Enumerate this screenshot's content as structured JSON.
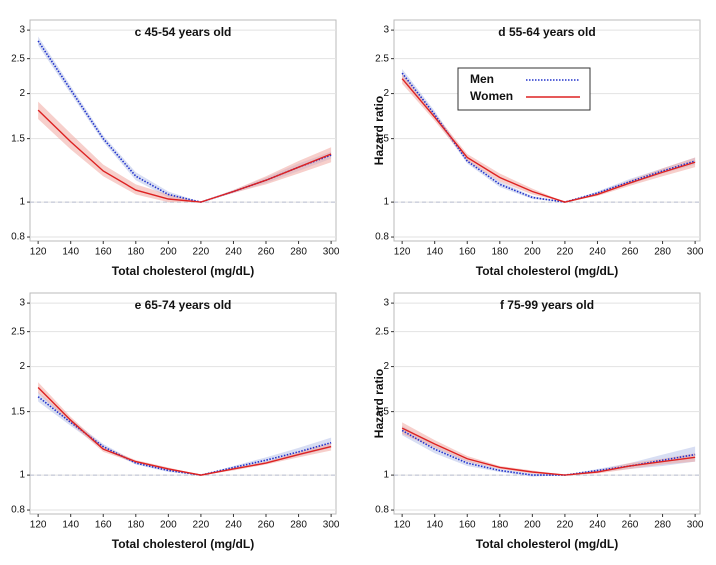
{
  "chart_data": [
    {
      "type": "line",
      "title": "c 45-54 years old",
      "x_label": "Total cholesterol (mg/dL)",
      "x": [
        120,
        140,
        160,
        180,
        200,
        220,
        240,
        260,
        280,
        300
      ],
      "series": [
        {
          "color": "#2233cc",
          "style": "dotted",
          "band_color": "#b8c2ea",
          "values": [
            2.8,
            2.05,
            1.5,
            1.18,
            1.05,
            1.0,
            1.07,
            1.15,
            1.25,
            1.35
          ],
          "lower": [
            2.72,
            2.0,
            1.47,
            1.15,
            1.03,
            1.0,
            1.06,
            1.13,
            1.22,
            1.32
          ],
          "upper": [
            2.88,
            2.1,
            1.53,
            1.21,
            1.07,
            1.0,
            1.08,
            1.17,
            1.28,
            1.38
          ]
        },
        {
          "color": "#dd2222",
          "style": "solid",
          "band_color": "#f0a8a0",
          "values": [
            1.8,
            1.47,
            1.22,
            1.08,
            1.02,
            1.0,
            1.07,
            1.15,
            1.25,
            1.36
          ],
          "lower": [
            1.7,
            1.4,
            1.18,
            1.05,
            1.0,
            1.0,
            1.06,
            1.12,
            1.2,
            1.29
          ],
          "upper": [
            1.9,
            1.55,
            1.27,
            1.12,
            1.05,
            1.0,
            1.08,
            1.18,
            1.3,
            1.42
          ]
        }
      ],
      "xlim": [
        115,
        303
      ],
      "ylim": [
        0.78,
        3.2
      ],
      "log_scale": "y",
      "xticks": [
        120,
        140,
        160,
        180,
        200,
        220,
        240,
        260,
        280,
        300
      ],
      "yticks": [
        0.8,
        1,
        1.5,
        2,
        2.5,
        3
      ],
      "grid": true,
      "hline": 1
    },
    {
      "type": "line",
      "title": "d 55-64 years old",
      "x_label": "Total cholesterol (mg/dL)",
      "y_label": "Hazard ratio",
      "x": [
        120,
        140,
        160,
        180,
        200,
        220,
        240,
        260,
        280,
        300
      ],
      "series": [
        {
          "name": "Men",
          "color": "#2233cc",
          "style": "dotted",
          "band_color": "#b8c2ea",
          "values": [
            2.28,
            1.75,
            1.3,
            1.12,
            1.03,
            1.0,
            1.06,
            1.14,
            1.22,
            1.3
          ],
          "lower": [
            2.22,
            1.71,
            1.28,
            1.1,
            1.02,
            1.0,
            1.05,
            1.12,
            1.2,
            1.27
          ],
          "upper": [
            2.34,
            1.79,
            1.32,
            1.14,
            1.04,
            1.0,
            1.07,
            1.16,
            1.24,
            1.33
          ]
        },
        {
          "name": "Women",
          "color": "#dd2222",
          "style": "solid",
          "band_color": "#f0a8a0",
          "values": [
            2.2,
            1.72,
            1.33,
            1.17,
            1.07,
            1.0,
            1.05,
            1.13,
            1.21,
            1.29
          ],
          "lower": [
            2.13,
            1.68,
            1.3,
            1.14,
            1.05,
            1.0,
            1.04,
            1.11,
            1.18,
            1.25
          ],
          "upper": [
            2.27,
            1.76,
            1.36,
            1.2,
            1.09,
            1.0,
            1.06,
            1.15,
            1.24,
            1.33
          ]
        }
      ],
      "xlim": [
        115,
        303
      ],
      "ylim": [
        0.78,
        3.2
      ],
      "log_scale": "y",
      "xticks": [
        120,
        140,
        160,
        180,
        200,
        220,
        240,
        260,
        280,
        300
      ],
      "yticks": [
        0.8,
        1,
        1.5,
        2,
        2.5,
        3
      ],
      "grid": true,
      "hline": 1,
      "legend": "top"
    },
    {
      "type": "line",
      "title": "e 65-74 years old",
      "x_label": "Total cholesterol (mg/dL)",
      "x": [
        120,
        140,
        160,
        180,
        200,
        220,
        240,
        260,
        280,
        300
      ],
      "series": [
        {
          "color": "#2233cc",
          "style": "dotted",
          "band_color": "#b8c2ea",
          "values": [
            1.65,
            1.4,
            1.2,
            1.08,
            1.03,
            1.0,
            1.05,
            1.1,
            1.16,
            1.23
          ],
          "lower": [
            1.6,
            1.37,
            1.18,
            1.07,
            1.02,
            1.0,
            1.04,
            1.08,
            1.13,
            1.19
          ],
          "upper": [
            1.7,
            1.43,
            1.22,
            1.09,
            1.04,
            1.0,
            1.06,
            1.12,
            1.19,
            1.27
          ]
        },
        {
          "color": "#dd2222",
          "style": "solid",
          "band_color": "#f0a8a0",
          "values": [
            1.75,
            1.42,
            1.18,
            1.09,
            1.04,
            1.0,
            1.04,
            1.08,
            1.14,
            1.2
          ],
          "lower": [
            1.69,
            1.39,
            1.16,
            1.08,
            1.03,
            1.0,
            1.03,
            1.07,
            1.12,
            1.17
          ],
          "upper": [
            1.81,
            1.45,
            1.2,
            1.1,
            1.05,
            1.0,
            1.05,
            1.09,
            1.16,
            1.23
          ]
        }
      ],
      "xlim": [
        115,
        303
      ],
      "ylim": [
        0.78,
        3.2
      ],
      "log_scale": "y",
      "xticks": [
        120,
        140,
        160,
        180,
        200,
        220,
        240,
        260,
        280,
        300
      ],
      "yticks": [
        0.8,
        1,
        1.5,
        2,
        2.5,
        3
      ],
      "grid": true,
      "hline": 1
    },
    {
      "type": "line",
      "title": "f 75-99 years old",
      "x_label": "Total cholesterol (mg/dL)",
      "y_label": "Hazard ratio",
      "x": [
        120,
        140,
        160,
        180,
        200,
        220,
        240,
        260,
        280,
        300
      ],
      "series": [
        {
          "color": "#2233cc",
          "style": "dotted",
          "band_color": "#b8c2ea",
          "values": [
            1.33,
            1.18,
            1.08,
            1.03,
            1.0,
            1.0,
            1.03,
            1.06,
            1.1,
            1.14
          ],
          "lower": [
            1.29,
            1.15,
            1.06,
            1.02,
            0.99,
            1.0,
            1.02,
            1.04,
            1.06,
            1.09
          ],
          "upper": [
            1.37,
            1.21,
            1.1,
            1.04,
            1.01,
            1.0,
            1.04,
            1.08,
            1.14,
            1.2
          ]
        },
        {
          "color": "#dd2222",
          "style": "solid",
          "band_color": "#f0a8a0",
          "values": [
            1.35,
            1.22,
            1.11,
            1.05,
            1.02,
            1.0,
            1.02,
            1.06,
            1.09,
            1.12
          ],
          "lower": [
            1.3,
            1.19,
            1.09,
            1.04,
            1.01,
            1.0,
            1.01,
            1.04,
            1.07,
            1.09
          ],
          "upper": [
            1.4,
            1.25,
            1.13,
            1.06,
            1.03,
            1.0,
            1.03,
            1.08,
            1.11,
            1.15
          ]
        }
      ],
      "xlim": [
        115,
        303
      ],
      "ylim": [
        0.78,
        3.2
      ],
      "log_scale": "y",
      "xticks": [
        120,
        140,
        160,
        180,
        200,
        220,
        240,
        260,
        280,
        300
      ],
      "yticks": [
        0.8,
        1,
        1.5,
        2,
        2.5,
        3
      ],
      "grid": true,
      "hline": 1
    }
  ]
}
